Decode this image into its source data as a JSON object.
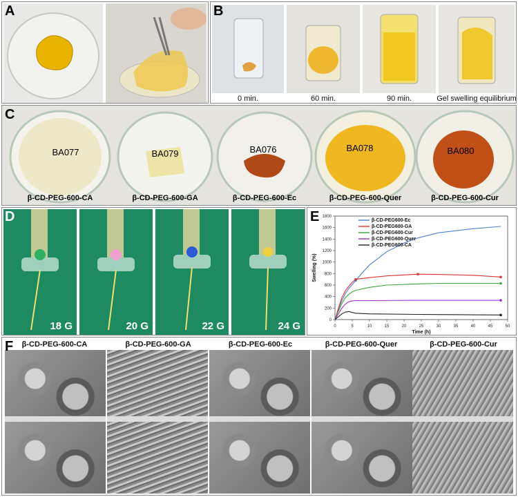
{
  "panels": {
    "A": {
      "label": "A"
    },
    "B": {
      "label": "B",
      "captions": [
        "0 min.",
        "60 min.",
        "90 min.",
        "Gel swelling equilibrium"
      ]
    },
    "C": {
      "label": "C",
      "samples": [
        "β-CD-PEG-600-CA",
        "β-CD-PEG-600-GA",
        "β-CD-PEG-600-Ec",
        "β-CD-PEG-600-Quer",
        "β-CD-PEG-600-Cur"
      ],
      "dish_codes": [
        "BA077",
        "BA079",
        "BA076",
        "BA078",
        "BA080"
      ]
    },
    "D": {
      "label": "D",
      "gauges": [
        "18 G",
        "20 G",
        "22 G",
        "24 G"
      ]
    },
    "E": {
      "label": "E"
    },
    "F": {
      "label": "F",
      "titles": [
        "β-CD-PEG-600-CA",
        "β-CD-PEG-600-GA",
        "β-CD-PEG-600-Ec",
        "β-CD-PEG-600-Quer",
        "β-CD-PEG-600-Cur"
      ]
    }
  },
  "chart_data": {
    "type": "line",
    "xlabel": "Time (h)",
    "ylabel": "Swelling (%)",
    "xlim": [
      0,
      50
    ],
    "ylim": [
      0,
      1800
    ],
    "xticks": [
      0,
      5,
      10,
      15,
      20,
      25,
      30,
      35,
      40,
      45,
      50
    ],
    "yticks": [
      0,
      200,
      400,
      600,
      800,
      1000,
      1200,
      1400,
      1600,
      1800
    ],
    "legend_position": "top-left",
    "series": [
      {
        "name": "β-CD-PEG600-Ec",
        "color": "#4a7fd6",
        "x": [
          0,
          1,
          2,
          3,
          4,
          5,
          6,
          8,
          10,
          15,
          20,
          24,
          30,
          40,
          48
        ],
        "y": [
          0,
          180,
          330,
          450,
          540,
          610,
          680,
          820,
          950,
          1180,
          1330,
          1420,
          1510,
          1580,
          1620
        ]
      },
      {
        "name": "β-CD-PEG600-GA",
        "color": "#e53030",
        "x": [
          0,
          1,
          2,
          3,
          4,
          5,
          6,
          10,
          15,
          24,
          30,
          40,
          48
        ],
        "y": [
          0,
          200,
          380,
          500,
          580,
          650,
          700,
          730,
          760,
          790,
          785,
          770,
          740
        ]
      },
      {
        "name": "β-CD-PEG600-Cur",
        "color": "#3aa63a",
        "x": [
          0,
          1,
          2,
          3,
          4,
          5,
          6,
          10,
          15,
          24,
          30,
          40,
          48
        ],
        "y": [
          0,
          150,
          280,
          380,
          440,
          480,
          510,
          560,
          600,
          620,
          630,
          630,
          630
        ]
      },
      {
        "name": "β-CD-PEG600-Quer",
        "color": "#a030c8",
        "x": [
          0,
          1,
          2,
          3,
          4,
          5,
          6,
          10,
          24,
          48
        ],
        "y": [
          0,
          100,
          200,
          270,
          310,
          325,
          330,
          330,
          335,
          335
        ]
      },
      {
        "name": "β-CD-PEG600-CA",
        "color": "#222222",
        "x": [
          0,
          1,
          2,
          3,
          4,
          5,
          6,
          10,
          24,
          48
        ],
        "y": [
          0,
          50,
          100,
          130,
          140,
          125,
          110,
          100,
          90,
          80
        ]
      }
    ],
    "markers": [
      {
        "series": 0,
        "x": 6,
        "y": 680
      },
      {
        "series": 1,
        "x": 6,
        "y": 700
      },
      {
        "series": 1,
        "x": 24,
        "y": 790
      },
      {
        "series": 1,
        "x": 48,
        "y": 740
      },
      {
        "series": 2,
        "x": 48,
        "y": 630
      },
      {
        "series": 3,
        "x": 48,
        "y": 335
      },
      {
        "series": 4,
        "x": 48,
        "y": 80
      }
    ]
  },
  "colors": {
    "gel_yellow": "#e8b800",
    "gel_red": "#b0401a",
    "green_bg": "#1e8a62",
    "lab_bg": "#dcdcd4"
  }
}
